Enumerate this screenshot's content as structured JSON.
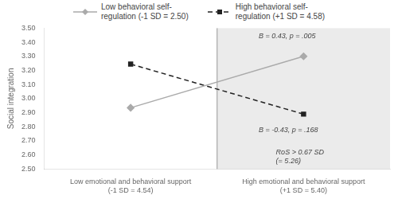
{
  "chart_data": {
    "type": "line",
    "categories": [
      "Low emotional and behavioral support\n(-1 SD = 4.54)",
      "High emotional and behavioral support\n(+1 SD = 5.40)"
    ],
    "series": [
      {
        "name": "Low behavioral self-\nregulation (-1 SD = 2.50)",
        "color": "#aaaaaa",
        "values": [
          2.935,
          3.3
        ],
        "marker": "diamond",
        "line_style": "solid"
      },
      {
        "name": "High behavioral self-\nregulation (+1 SD = 4.58)",
        "color": "#222222",
        "values": [
          3.245,
          2.89
        ],
        "marker": "square",
        "line_style": "dashed"
      }
    ],
    "ylabel": "Social integration",
    "ylim": [
      2.5,
      3.5
    ],
    "yticks": [
      {
        "value": 2.5,
        "label": "2.50"
      },
      {
        "value": 2.6,
        "label": "2.60"
      },
      {
        "value": 2.7,
        "label": "2.70"
      },
      {
        "value": 2.8,
        "label": "2.80"
      },
      {
        "value": 2.9,
        "label": "2.90"
      },
      {
        "value": 3.0,
        "label": "3.00"
      },
      {
        "value": 3.1,
        "label": "3.10"
      },
      {
        "value": 3.2,
        "label": "3.20"
      },
      {
        "value": 3.3,
        "label": "3.30"
      },
      {
        "value": 3.4,
        "label": "3.40"
      },
      {
        "value": 3.5,
        "label": "3.50"
      }
    ],
    "grid": false,
    "legend": "top",
    "annotations": [
      "B = 0.43, p = .005",
      "B = -0.43, p = .168",
      "RoS > 0.67 SD\n(= 5.26)"
    ]
  }
}
